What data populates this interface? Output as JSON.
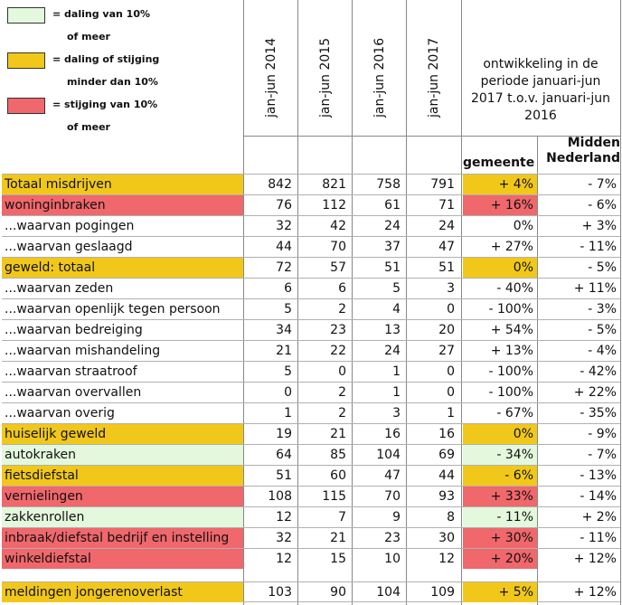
{
  "colors": {
    "green": "#e3f8dc",
    "yellow": "#f1c81a",
    "red": "#f0676c"
  },
  "legend": {
    "green": {
      "line1": "= daling van 10%",
      "line2": "of meer"
    },
    "yellow": {
      "line1": "= daling of stijging",
      "line2": "minder dan 10%"
    },
    "red": {
      "line1": "= stijging van 10%",
      "line2": "of meer"
    }
  },
  "header": {
    "years": [
      "jan-jun 2014",
      "jan-jun 2015",
      "jan-jun 2016",
      "jan-jun 2017"
    ],
    "period": [
      "ontwikkeling in de",
      "periode januari-jun",
      "2017 t.o.v. januari-jun",
      "2016"
    ],
    "gemeente": "gemeente",
    "midden_line1": "Midden",
    "midden_line2": "Nederland"
  },
  "rows": [
    {
      "label": "Totaal misdrijven",
      "label_color": "yellow",
      "values": [
        "842",
        "821",
        "758",
        "791"
      ],
      "gemeente": "+ 4%",
      "gemeente_color": "yellow",
      "midden": "- 7%"
    },
    {
      "label": "woninginbraken",
      "label_color": "red",
      "values": [
        "76",
        "112",
        "61",
        "71"
      ],
      "gemeente": "+ 16%",
      "gemeente_color": "red",
      "midden": "- 6%"
    },
    {
      "label": "...waarvan pogingen",
      "label_color": "",
      "values": [
        "32",
        "42",
        "24",
        "24"
      ],
      "gemeente": "0%",
      "gemeente_color": "",
      "midden": "+ 3%"
    },
    {
      "label": "...waarvan geslaagd",
      "label_color": "",
      "values": [
        "44",
        "70",
        "37",
        "47"
      ],
      "gemeente": "+ 27%",
      "gemeente_color": "",
      "midden": "- 11%"
    },
    {
      "label": "geweld: totaal",
      "label_color": "yellow",
      "values": [
        "72",
        "57",
        "51",
        "51"
      ],
      "gemeente": "0%",
      "gemeente_color": "yellow",
      "midden": "- 5%"
    },
    {
      "label": "...waarvan zeden",
      "label_color": "",
      "values": [
        "6",
        "6",
        "5",
        "3"
      ],
      "gemeente": "- 40%",
      "gemeente_color": "",
      "midden": "+ 11%"
    },
    {
      "label": "...waarvan openlijk tegen persoon",
      "label_color": "",
      "values": [
        "5",
        "2",
        "4",
        "0"
      ],
      "gemeente": "- 100%",
      "gemeente_color": "",
      "midden": "- 3%"
    },
    {
      "label": "...waarvan bedreiging",
      "label_color": "",
      "values": [
        "34",
        "23",
        "13",
        "20"
      ],
      "gemeente": "+ 54%",
      "gemeente_color": "",
      "midden": "- 5%"
    },
    {
      "label": "...waarvan mishandeling",
      "label_color": "",
      "values": [
        "21",
        "22",
        "24",
        "27"
      ],
      "gemeente": "+ 13%",
      "gemeente_color": "",
      "midden": "- 4%"
    },
    {
      "label": "...waarvan straatroof",
      "label_color": "",
      "values": [
        "5",
        "0",
        "1",
        "0"
      ],
      "gemeente": "- 100%",
      "gemeente_color": "",
      "midden": "- 42%"
    },
    {
      "label": "...waarvan overvallen",
      "label_color": "",
      "values": [
        "0",
        "2",
        "1",
        "0"
      ],
      "gemeente": "- 100%",
      "gemeente_color": "",
      "midden": "+ 22%"
    },
    {
      "label": "...waarvan overig",
      "label_color": "",
      "values": [
        "1",
        "2",
        "3",
        "1"
      ],
      "gemeente": "- 67%",
      "gemeente_color": "",
      "midden": "- 35%"
    },
    {
      "label": "huiselijk geweld",
      "label_color": "yellow",
      "values": [
        "19",
        "21",
        "16",
        "16"
      ],
      "gemeente": "0%",
      "gemeente_color": "yellow",
      "midden": "- 9%"
    },
    {
      "label": "autokraken",
      "label_color": "green",
      "values": [
        "64",
        "85",
        "104",
        "69"
      ],
      "gemeente": "- 34%",
      "gemeente_color": "green",
      "midden": "- 7%"
    },
    {
      "label": "fietsdiefstal",
      "label_color": "yellow",
      "values": [
        "51",
        "60",
        "47",
        "44"
      ],
      "gemeente": "- 6%",
      "gemeente_color": "yellow",
      "midden": "- 13%"
    },
    {
      "label": "vernielingen",
      "label_color": "red",
      "values": [
        "108",
        "115",
        "70",
        "93"
      ],
      "gemeente": "+ 33%",
      "gemeente_color": "red",
      "midden": "- 14%"
    },
    {
      "label": "zakkenrollen",
      "label_color": "green",
      "values": [
        "12",
        "7",
        "9",
        "8"
      ],
      "gemeente": "- 11%",
      "gemeente_color": "green",
      "midden": "+ 2%"
    },
    {
      "label": "inbraak/diefstal bedrijf en instelling",
      "label_color": "red",
      "values": [
        "32",
        "21",
        "23",
        "30"
      ],
      "gemeente": "+ 30%",
      "gemeente_color": "red",
      "midden": "- 11%"
    },
    {
      "label": "winkeldiefstal",
      "label_color": "red",
      "values": [
        "12",
        "15",
        "10",
        "12"
      ],
      "gemeente": "+ 20%",
      "gemeente_color": "red",
      "midden": "+ 12%"
    }
  ],
  "footer_row": {
    "label": "meldingen jongerenoverlast",
    "label_color": "yellow",
    "values": [
      "103",
      "90",
      "104",
      "109"
    ],
    "gemeente": "+ 5%",
    "gemeente_color": "yellow",
    "midden": "+ 12%"
  }
}
